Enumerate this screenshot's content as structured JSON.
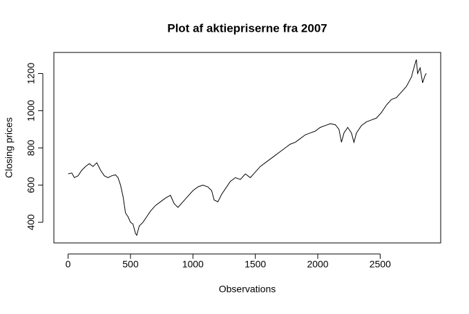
{
  "chart_data": {
    "type": "line",
    "title": "Plot af aktiepriserne fra 2007",
    "x_label": "Observations",
    "y_label": "Closing prices",
    "color": "#000000",
    "x": [
      1,
      30,
      50,
      80,
      110,
      140,
      170,
      200,
      230,
      260,
      290,
      320,
      350,
      380,
      400,
      420,
      440,
      460,
      480,
      500,
      520,
      540,
      550,
      570,
      600,
      630,
      660,
      700,
      740,
      780,
      820,
      850,
      880,
      920,
      960,
      1000,
      1040,
      1080,
      1120,
      1150,
      1170,
      1200,
      1230,
      1260,
      1300,
      1340,
      1380,
      1420,
      1460,
      1500,
      1540,
      1580,
      1620,
      1660,
      1700,
      1740,
      1780,
      1820,
      1860,
      1900,
      1940,
      1980,
      2020,
      2060,
      2100,
      2140,
      2170,
      2190,
      2210,
      2240,
      2270,
      2290,
      2310,
      2350,
      2390,
      2430,
      2470,
      2510,
      2550,
      2590,
      2630,
      2670,
      2710,
      2750,
      2770,
      2790,
      2800,
      2820,
      2840,
      2860,
      2870
    ],
    "values": [
      660,
      665,
      640,
      650,
      680,
      700,
      715,
      700,
      720,
      680,
      650,
      640,
      650,
      655,
      640,
      600,
      540,
      450,
      430,
      400,
      390,
      340,
      330,
      380,
      400,
      430,
      460,
      490,
      510,
      530,
      545,
      500,
      480,
      510,
      540,
      570,
      590,
      600,
      590,
      570,
      520,
      510,
      550,
      580,
      620,
      640,
      630,
      660,
      640,
      670,
      700,
      720,
      740,
      760,
      780,
      800,
      820,
      830,
      850,
      870,
      880,
      890,
      910,
      920,
      930,
      925,
      900,
      830,
      880,
      910,
      880,
      830,
      880,
      920,
      940,
      950,
      960,
      990,
      1030,
      1060,
      1070,
      1100,
      1130,
      1180,
      1230,
      1275,
      1200,
      1230,
      1150,
      1190,
      1200
    ],
    "xlim": [
      -113.8,
      2984.8
    ],
    "ylim": [
      289,
      1313
    ],
    "xticks": [
      0,
      500,
      1000,
      1500,
      2000,
      2500
    ],
    "yticks": [
      400,
      600,
      800,
      1000,
      1200
    ]
  }
}
